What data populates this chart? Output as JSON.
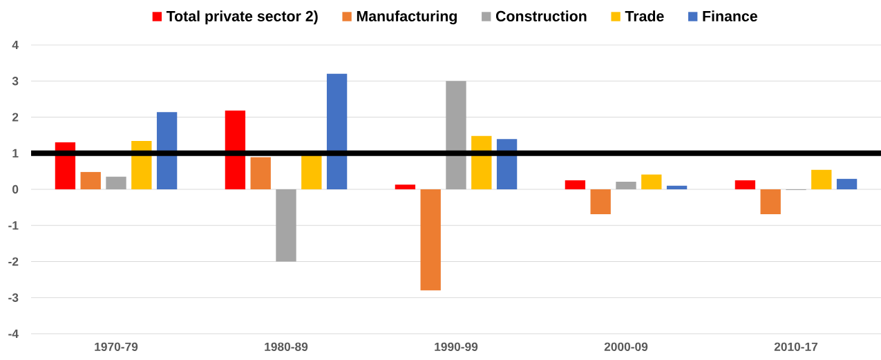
{
  "chart_data": {
    "type": "bar",
    "categories": [
      "1970-79",
      "1980-89",
      "1990-99",
      "2000-09",
      "2010-17"
    ],
    "series": [
      {
        "name": "Total private sector 2)",
        "color": "#ff0000",
        "values": [
          1.3,
          2.18,
          0.13,
          0.25,
          0.25
        ]
      },
      {
        "name": "Manufacturing",
        "color": "#ed7d31",
        "values": [
          0.48,
          0.89,
          -2.8,
          -0.69,
          -0.69
        ]
      },
      {
        "name": "Construction",
        "color": "#a5a5a5",
        "values": [
          0.35,
          -2.0,
          3.0,
          0.21,
          -0.02
        ]
      },
      {
        "name": "Trade",
        "color": "#ffc000",
        "values": [
          1.34,
          0.95,
          1.48,
          0.41,
          0.54
        ]
      },
      {
        "name": "Finance",
        "color": "#4472c4",
        "values": [
          2.14,
          3.2,
          1.39,
          0.1,
          0.29
        ]
      }
    ],
    "ylim": [
      -4,
      4
    ],
    "yticks": [
      -4,
      -3,
      -2,
      -1,
      0,
      1,
      2,
      3,
      4
    ],
    "grid": "y",
    "legend": "top",
    "ref_lines": [
      {
        "axis": "y",
        "value": 1,
        "color": "#000000"
      }
    ]
  }
}
